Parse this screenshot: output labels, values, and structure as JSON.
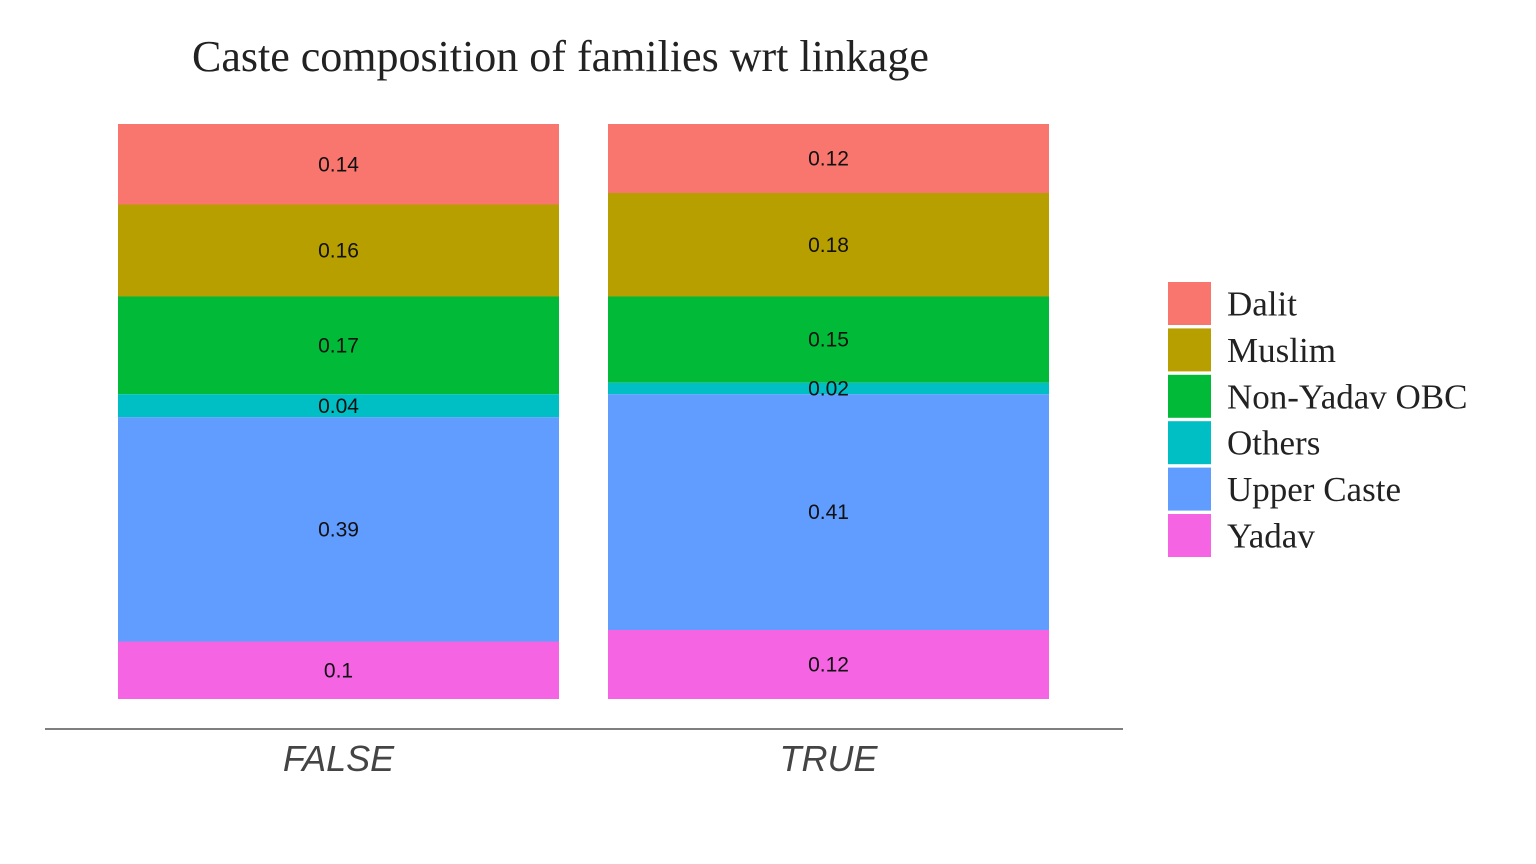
{
  "chart_data": {
    "type": "bar",
    "stacked": true,
    "normalized": true,
    "title": "Caste composition of families wrt linkage",
    "xlabel": "",
    "ylabel": "",
    "categories": [
      "FALSE",
      "TRUE"
    ],
    "ylim": [
      0,
      1
    ],
    "grid": false,
    "legend_position": "right",
    "series": [
      {
        "name": "Dalit",
        "color": "#F8766D",
        "values": [
          0.14,
          0.12
        ],
        "labels": [
          "0.14",
          "0.12"
        ]
      },
      {
        "name": "Muslim",
        "color": "#B79F00",
        "values": [
          0.16,
          0.18
        ],
        "labels": [
          "0.16",
          "0.18"
        ]
      },
      {
        "name": "Non-Yadav OBC",
        "color": "#00BA38",
        "values": [
          0.17,
          0.15
        ],
        "labels": [
          "0.17",
          "0.15"
        ]
      },
      {
        "name": "Others",
        "color": "#00BFC4",
        "values": [
          0.04,
          0.02
        ],
        "labels": [
          "0.04",
          "0.02"
        ]
      },
      {
        "name": "Upper Caste",
        "color": "#619CFF",
        "values": [
          0.39,
          0.41
        ],
        "labels": [
          "0.39",
          "0.41"
        ]
      },
      {
        "name": "Yadav",
        "color": "#F564E3",
        "values": [
          0.1,
          0.12
        ],
        "labels": [
          "0.1",
          "0.12"
        ]
      }
    ]
  }
}
